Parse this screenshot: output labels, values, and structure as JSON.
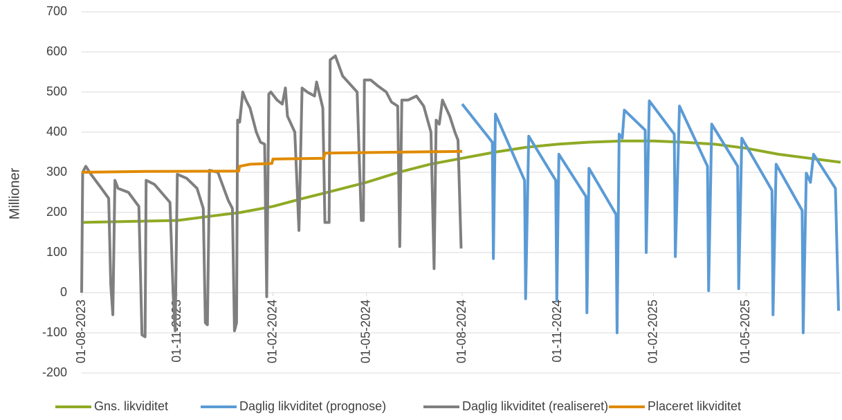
{
  "chart_data": {
    "type": "line",
    "ylabel": "Millioner",
    "xlim": [
      "2023-08-01",
      "2025-07-31"
    ],
    "xticks": [
      {
        "value": "2023-08-01",
        "label": "01-08-2023"
      },
      {
        "value": "2023-11-01",
        "label": "01-11-2023"
      },
      {
        "value": "2024-02-01",
        "label": "01-02-2024"
      },
      {
        "value": "2024-05-01",
        "label": "01-05-2024"
      },
      {
        "value": "2024-08-01",
        "label": "01-08-2024"
      },
      {
        "value": "2024-11-01",
        "label": "01-11-2024"
      },
      {
        "value": "2025-02-01",
        "label": "01-02-2025"
      },
      {
        "value": "2025-05-01",
        "label": "01-05-2025"
      }
    ],
    "ylim": [
      -200,
      700
    ],
    "yticks": [
      -200,
      -100,
      0,
      100,
      200,
      300,
      400,
      500,
      600,
      700
    ],
    "grid": true,
    "legend": "bottom",
    "series": [
      {
        "name": "Gns. likviditet",
        "color": "#8faa24",
        "x": [
          "2023-08-01",
          "2023-11-01",
          "2023-12-01",
          "2024-01-01",
          "2024-02-01",
          "2024-03-01",
          "2024-04-01",
          "2024-05-01",
          "2024-06-01",
          "2024-07-01",
          "2024-08-01",
          "2024-09-01",
          "2024-10-01",
          "2024-11-01",
          "2024-12-01",
          "2025-01-01",
          "2025-02-01",
          "2025-03-01",
          "2025-04-01",
          "2025-05-01",
          "2025-06-01",
          "2025-07-01",
          "2025-07-31"
        ],
        "values": [
          175,
          180,
          190,
          200,
          215,
          235,
          255,
          275,
          300,
          320,
          335,
          350,
          362,
          370,
          375,
          378,
          378,
          375,
          370,
          360,
          345,
          335,
          325
        ]
      },
      {
        "name": "Daglig likviditet (prognose)",
        "color": "#5b9bd5",
        "x": [
          "2024-08-01",
          "2024-08-30",
          "2024-08-31",
          "2024-09-02",
          "2024-09-30",
          "2024-10-01",
          "2024-10-04",
          "2024-10-30",
          "2024-10-31",
          "2024-11-02",
          "2024-11-28",
          "2024-11-29",
          "2024-12-01",
          "2024-12-27",
          "2024-12-28",
          "2024-12-30",
          "2025-01-02",
          "2025-01-04",
          "2025-01-24",
          "2025-01-25",
          "2025-01-28",
          "2025-02-21",
          "2025-02-22",
          "2025-02-26",
          "2025-03-25",
          "2025-03-26",
          "2025-03-29",
          "2025-04-23",
          "2025-04-24",
          "2025-04-27",
          "2025-05-26",
          "2025-05-27",
          "2025-05-30",
          "2025-06-24",
          "2025-06-25",
          "2025-06-28",
          "2025-07-02",
          "2025-07-05",
          "2025-07-26",
          "2025-07-29"
        ],
        "values": [
          470,
          375,
          85,
          445,
          280,
          -15,
          390,
          280,
          -20,
          345,
          240,
          -50,
          310,
          195,
          -100,
          395,
          385,
          455,
          405,
          100,
          478,
          395,
          90,
          465,
          315,
          5,
          420,
          315,
          10,
          385,
          255,
          -55,
          320,
          205,
          -100,
          298,
          275,
          345,
          260,
          -45
        ]
      },
      {
        "name": "Daglig likviditet (realiseret)",
        "color": "#7f7f7f",
        "x": [
          "2023-08-01",
          "2023-08-02",
          "2023-08-05",
          "2023-08-10",
          "2023-08-20",
          "2023-08-27",
          "2023-08-29",
          "2023-08-31",
          "2023-09-02",
          "2023-09-05",
          "2023-09-15",
          "2023-09-25",
          "2023-09-28",
          "2023-10-01",
          "2023-10-02",
          "2023-10-10",
          "2023-10-25",
          "2023-10-28",
          "2023-10-30",
          "2023-11-01",
          "2023-11-10",
          "2023-11-20",
          "2023-11-26",
          "2023-11-28",
          "2023-11-30",
          "2023-12-02",
          "2023-12-10",
          "2023-12-20",
          "2023-12-24",
          "2023-12-26",
          "2023-12-28",
          "2023-12-29",
          "2023-12-31",
          "2024-01-03",
          "2024-01-06",
          "2024-01-10",
          "2024-01-16",
          "2024-01-20",
          "2024-01-24",
          "2024-01-26",
          "2024-01-28",
          "2024-01-30",
          "2024-02-05",
          "2024-02-10",
          "2024-02-13",
          "2024-02-15",
          "2024-02-22",
          "2024-02-26",
          "2024-02-29",
          "2024-03-05",
          "2024-03-12",
          "2024-03-14",
          "2024-03-20",
          "2024-03-22",
          "2024-03-26",
          "2024-03-27",
          "2024-04-01",
          "2024-04-08",
          "2024-04-15",
          "2024-04-22",
          "2024-04-26",
          "2024-04-28",
          "2024-04-29",
          "2024-05-05",
          "2024-05-12",
          "2024-05-20",
          "2024-05-25",
          "2024-05-31",
          "2024-06-02",
          "2024-06-04",
          "2024-06-10",
          "2024-06-18",
          "2024-06-25",
          "2024-07-02",
          "2024-07-05",
          "2024-07-07",
          "2024-07-10",
          "2024-07-13",
          "2024-07-20",
          "2024-07-25",
          "2024-07-28",
          "2024-07-31"
        ],
        "values": [
          0,
          300,
          315,
          295,
          260,
          235,
          20,
          -55,
          280,
          260,
          250,
          215,
          -105,
          -110,
          280,
          270,
          225,
          0,
          -95,
          295,
          285,
          260,
          210,
          -75,
          -80,
          305,
          300,
          230,
          210,
          -95,
          -75,
          430,
          425,
          500,
          480,
          460,
          400,
          375,
          370,
          -10,
          495,
          500,
          480,
          470,
          510,
          440,
          400,
          155,
          510,
          500,
          490,
          525,
          460,
          175,
          175,
          580,
          590,
          540,
          520,
          500,
          180,
          180,
          530,
          530,
          515,
          500,
          475,
          465,
          115,
          480,
          480,
          490,
          465,
          400,
          60,
          430,
          420,
          480,
          440,
          400,
          380,
          110
        ]
      },
      {
        "name": "Placeret likviditet",
        "color": "#e08a00",
        "x": [
          "2023-08-01",
          "2023-10-01",
          "2023-12-30",
          "2023-12-31",
          "2024-01-10",
          "2024-01-31",
          "2024-02-01",
          "2024-03-21",
          "2024-03-22",
          "2024-08-01"
        ],
        "values": [
          300,
          302,
          303,
          315,
          320,
          322,
          333,
          335,
          348,
          352
        ]
      }
    ]
  }
}
